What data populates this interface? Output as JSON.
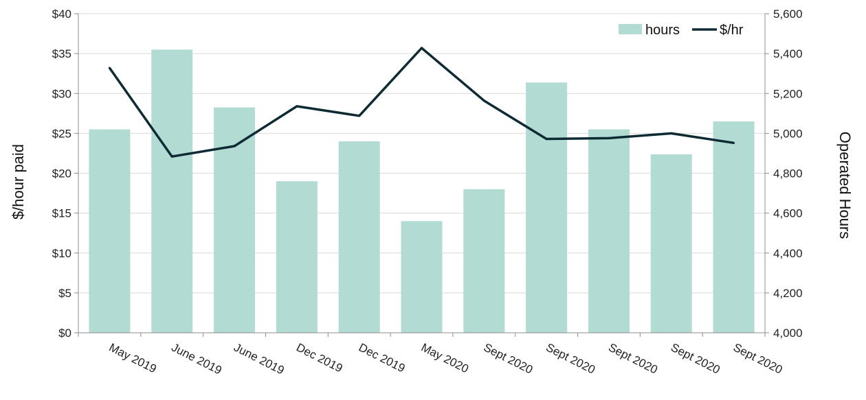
{
  "chart_data": {
    "type": "bar",
    "title": "",
    "xlabel": "",
    "ylabel": "$/hour paid",
    "y2label": "Operated Hours",
    "categories": [
      "May 2019",
      "June 2019",
      "June 2019",
      "Dec 2019",
      "Dec 2019",
      "May 2020",
      "Sept 2020",
      "Sept 2020",
      "Sept 2020",
      "Sept 2020",
      "Sept 2020"
    ],
    "series": [
      {
        "name": "hours",
        "type": "bar",
        "axis": "right",
        "color": "#b2dbd3",
        "values": [
          5020,
          5420,
          5130,
          4760,
          4960,
          4560,
          4720,
          5255,
          5020,
          4895,
          5060
        ]
      },
      {
        "name": "$/hr",
        "type": "line",
        "axis": "left",
        "color": "#0e2a33",
        "values": [
          33.2,
          22.1,
          23.4,
          28.4,
          27.2,
          35.7,
          29.1,
          24.3,
          24.4,
          25.0,
          23.8
        ]
      }
    ],
    "ylim": [
      0,
      40
    ],
    "y2lim": [
      4000,
      5600
    ],
    "yticks": [
      "$0",
      "$5",
      "$10",
      "$15",
      "$20",
      "$25",
      "$30",
      "$35",
      "$40"
    ],
    "y2ticks": [
      "4,000",
      "4,200",
      "4,400",
      "4,600",
      "4,800",
      "5,000",
      "5,200",
      "5,400",
      "5,600"
    ],
    "grid": true,
    "legend": "top-right"
  }
}
